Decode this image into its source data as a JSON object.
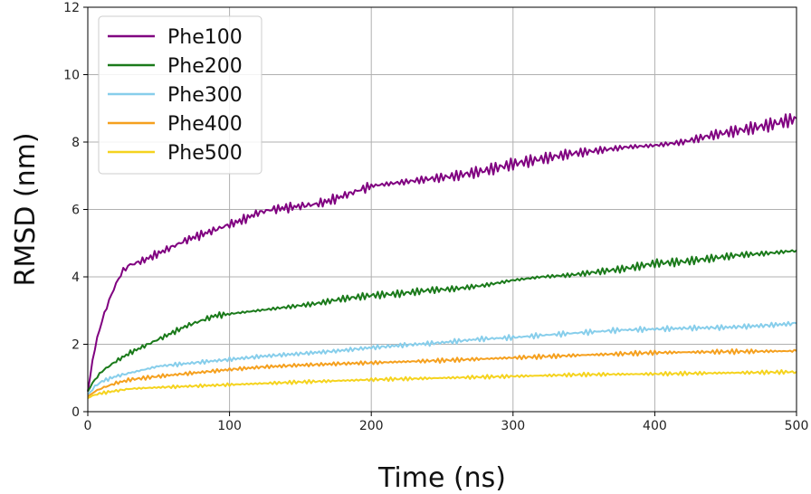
{
  "chart_data": {
    "type": "line",
    "title": "",
    "xlabel": "Time (ns)",
    "ylabel": "RMSD (nm)",
    "xlim": [
      0,
      500
    ],
    "ylim": [
      0,
      12
    ],
    "xticks": [
      0,
      100,
      200,
      300,
      400,
      500
    ],
    "yticks": [
      0,
      2,
      4,
      6,
      8,
      10,
      12
    ],
    "xtick_labels": [
      "0",
      "100",
      "200",
      "300",
      "400",
      "500"
    ],
    "ytick_labels": [
      "0",
      "2",
      "4",
      "6",
      "8",
      "10",
      "12"
    ],
    "grid": true,
    "legend_position": "top-left",
    "series": [
      {
        "name": "Phe100",
        "color": "#800080",
        "x": [
          0,
          5,
          10,
          15,
          20,
          25,
          30,
          40,
          50,
          60,
          70,
          80,
          90,
          100,
          110,
          120,
          130,
          140,
          150,
          160,
          170,
          180,
          190,
          200,
          220,
          240,
          260,
          280,
          300,
          320,
          340,
          360,
          380,
          400,
          420,
          440,
          460,
          480,
          500
        ],
        "y": [
          0.6,
          1.9,
          2.7,
          3.3,
          3.8,
          4.2,
          4.35,
          4.5,
          4.7,
          4.9,
          5.1,
          5.25,
          5.4,
          5.55,
          5.7,
          5.9,
          6.0,
          6.05,
          6.1,
          6.15,
          6.25,
          6.4,
          6.55,
          6.7,
          6.8,
          6.9,
          7.0,
          7.15,
          7.35,
          7.5,
          7.65,
          7.75,
          7.85,
          7.9,
          8.0,
          8.2,
          8.35,
          8.5,
          8.7
        ]
      },
      {
        "name": "Phe200",
        "color": "#1a7a1a",
        "x": [
          0,
          5,
          10,
          20,
          30,
          40,
          50,
          60,
          70,
          80,
          90,
          100,
          120,
          140,
          160,
          180,
          200,
          220,
          240,
          260,
          280,
          300,
          320,
          340,
          360,
          380,
          400,
          420,
          440,
          460,
          480,
          500
        ],
        "y": [
          0.6,
          0.95,
          1.2,
          1.5,
          1.75,
          1.95,
          2.15,
          2.35,
          2.55,
          2.7,
          2.85,
          2.9,
          3.0,
          3.1,
          3.2,
          3.35,
          3.45,
          3.5,
          3.6,
          3.65,
          3.75,
          3.9,
          4.0,
          4.05,
          4.15,
          4.25,
          4.4,
          4.45,
          4.55,
          4.65,
          4.7,
          4.78
        ]
      },
      {
        "name": "Phe300",
        "color": "#87ceeb",
        "x": [
          0,
          5,
          10,
          20,
          30,
          50,
          75,
          100,
          125,
          150,
          175,
          200,
          225,
          250,
          275,
          300,
          325,
          350,
          375,
          400,
          425,
          450,
          475,
          500
        ],
        "y": [
          0.5,
          0.75,
          0.9,
          1.05,
          1.15,
          1.35,
          1.45,
          1.55,
          1.65,
          1.72,
          1.8,
          1.9,
          1.98,
          2.05,
          2.15,
          2.2,
          2.28,
          2.35,
          2.42,
          2.45,
          2.48,
          2.5,
          2.55,
          2.62
        ]
      },
      {
        "name": "Phe400",
        "color": "#f5a01e",
        "x": [
          0,
          5,
          10,
          20,
          30,
          50,
          75,
          100,
          125,
          150,
          175,
          200,
          250,
          300,
          350,
          400,
          450,
          500
        ],
        "y": [
          0.45,
          0.6,
          0.7,
          0.85,
          0.95,
          1.05,
          1.15,
          1.25,
          1.33,
          1.38,
          1.42,
          1.45,
          1.52,
          1.6,
          1.68,
          1.75,
          1.78,
          1.8
        ]
      },
      {
        "name": "Phe500",
        "color": "#f5d31e",
        "x": [
          0,
          5,
          10,
          20,
          30,
          50,
          75,
          100,
          150,
          200,
          250,
          300,
          350,
          400,
          450,
          500
        ],
        "y": [
          0.4,
          0.5,
          0.55,
          0.62,
          0.68,
          0.72,
          0.76,
          0.8,
          0.88,
          0.95,
          1.0,
          1.05,
          1.1,
          1.12,
          1.15,
          1.18
        ]
      }
    ]
  }
}
